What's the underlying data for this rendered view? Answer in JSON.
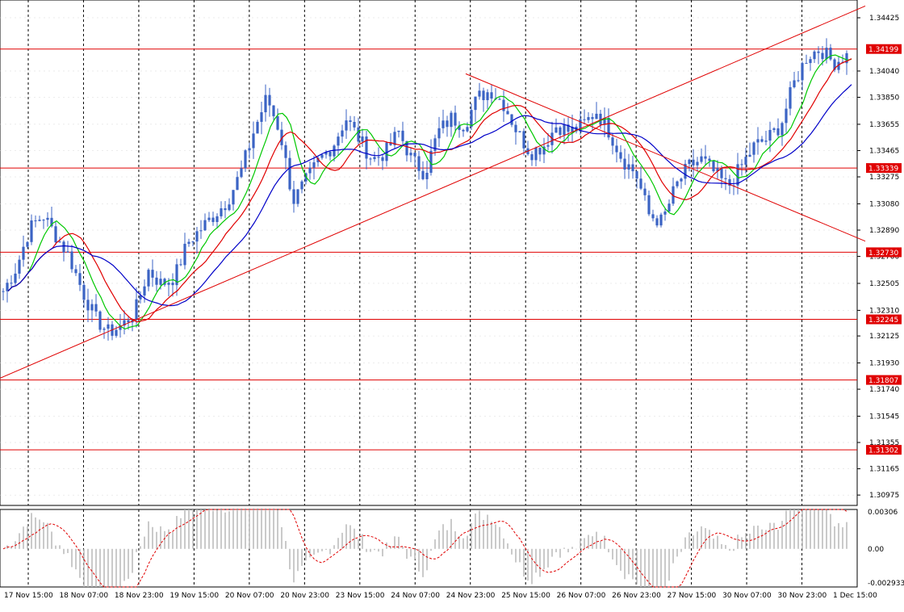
{
  "chart_data": [
    {
      "type": "candlestick",
      "xlabel": "",
      "ylabel": "",
      "grid": true,
      "ylim": [
        1.309,
        1.3453
      ],
      "colors": {
        "candles": "#3b63c4",
        "ma_fast": "#00c800",
        "ma_mid": "#e00000",
        "ma_slow": "#0000c8",
        "level_lines": "#e00000",
        "trend_lines": "#e00000",
        "grid": "#000000",
        "background": "#ffffff"
      },
      "y_ticks": [
        "1.34425",
        "1.34040",
        "1.33850",
        "1.33655",
        "1.33465",
        "1.33275",
        "1.33080",
        "1.32890",
        "1.32700",
        "1.32505",
        "1.32310",
        "1.32125",
        "1.31930",
        "1.31740",
        "1.31545",
        "1.31355",
        "1.31165",
        "1.30975"
      ],
      "x_ticks": [
        "17 Nov 15:00",
        "18 Nov 07:00",
        "18 Nov 23:00",
        "19 Nov 15:00",
        "20 Nov 07:00",
        "20 Nov 23:00",
        "23 Nov 15:00",
        "24 Nov 07:00",
        "24 Nov 23:00",
        "25 Nov 15:00",
        "26 Nov 07:00",
        "26 Nov 23:00",
        "27 Nov 15:00",
        "30 Nov 07:00",
        "30 Nov 23:00",
        "1 Dec 15:00"
      ],
      "horizontal_levels": [
        "1.34199",
        "1.33339",
        "1.32730",
        "1.32245",
        "1.31807",
        "1.31302"
      ],
      "price_path": [
        1.3245,
        1.3262,
        1.329,
        1.33,
        1.3285,
        1.327,
        1.3245,
        1.3225,
        1.3215,
        1.322,
        1.323,
        1.326,
        1.325,
        1.3255,
        1.328,
        1.329,
        1.33,
        1.331,
        1.333,
        1.336,
        1.3385,
        1.336,
        1.331,
        1.3325,
        1.334,
        1.335,
        1.337,
        1.3355,
        1.334,
        1.3345,
        1.336,
        1.334,
        1.333,
        1.336,
        1.337,
        1.3365,
        1.3385,
        1.339,
        1.338,
        1.336,
        1.3345,
        1.335,
        1.3365,
        1.336,
        1.3365,
        1.3375,
        1.336,
        1.334,
        1.333,
        1.33,
        1.3295,
        1.332,
        1.3335,
        1.334,
        1.333,
        1.332,
        1.3335,
        1.335,
        1.3355,
        1.3365,
        1.3395,
        1.3415,
        1.342,
        1.341,
        1.3415
      ]
    },
    {
      "type": "histogram",
      "ylim": [
        -0.0029,
        0.003
      ],
      "y_ticks": [
        "0.00306",
        "0.00",
        "-0.002933"
      ]
    }
  ]
}
